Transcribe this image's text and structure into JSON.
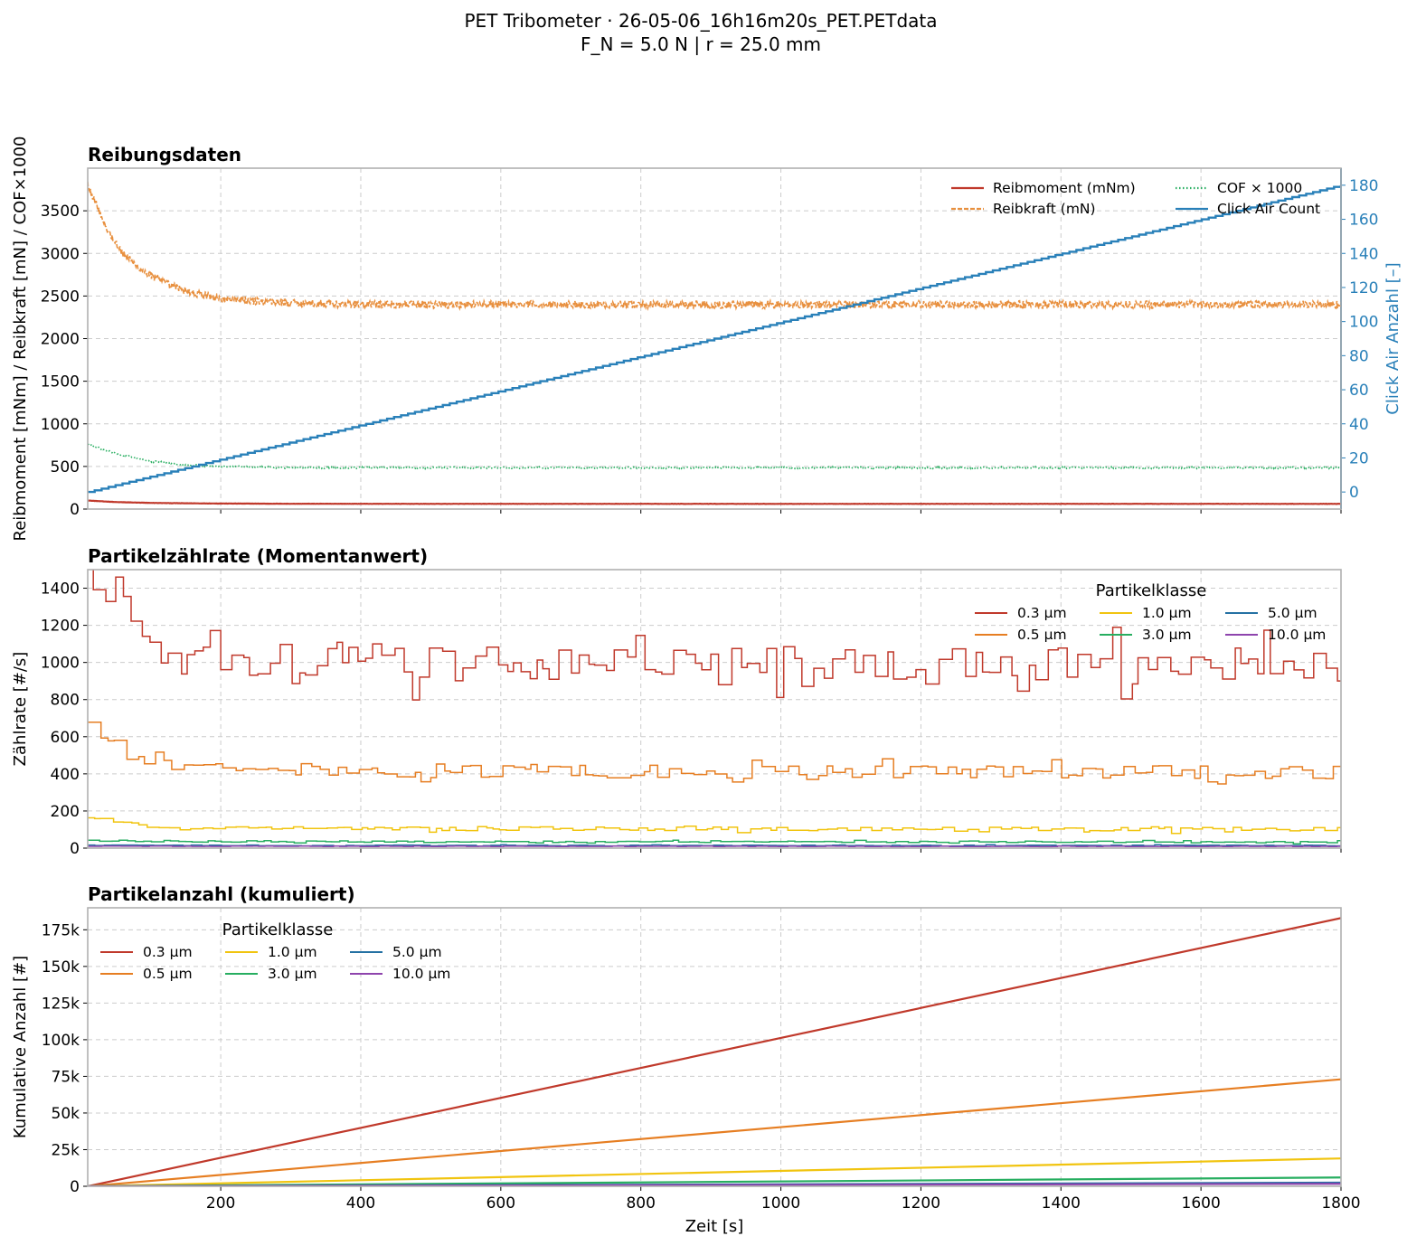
{
  "figure": {
    "suptitle_line1": "PET Tribometer  ·  26-05-06_16h16m20s_PET.PETdata",
    "suptitle_line2": "F_N = 5.0 N  |  r = 25.0 mm"
  },
  "colors": {
    "reibmoment": "#c0392b",
    "reibkraft": "#e8903f",
    "cof": "#27ae60",
    "click_air": "#2980b9",
    "p03": "#c0392b",
    "p05": "#e67e22",
    "p10": "#f1c40f",
    "p30": "#27ae60",
    "p50": "#2471a3",
    "p100": "#8e44ad"
  },
  "chart_data": [
    {
      "type": "line",
      "title": "Reibungsdaten",
      "xlabel": "",
      "ylabel": "Reibmoment [mNm]  /  Reibkraft [mN]  /  COF×1000",
      "y2label": "Click Air Anzahl [–]",
      "xlim": [
        10,
        1800
      ],
      "ylim": [
        0,
        4000
      ],
      "y2lim": [
        -10,
        190
      ],
      "yticks": [
        0,
        500,
        1000,
        1500,
        2000,
        2500,
        3000,
        3500
      ],
      "y2ticks": [
        0,
        20,
        40,
        60,
        80,
        100,
        120,
        140,
        160,
        180
      ],
      "xticks": [
        200,
        400,
        600,
        800,
        1000,
        1200,
        1400,
        1600,
        1800
      ],
      "grid": true,
      "legend_position": "top-right",
      "series": [
        {
          "name": "Reibmoment (mNm)",
          "style": "solid",
          "axis": "left",
          "x": [
            10,
            50,
            100,
            150,
            200,
            300,
            500,
            1800
          ],
          "values": [
            100,
            82,
            72,
            68,
            65,
            62,
            61,
            61
          ],
          "noise": 1.5
        },
        {
          "name": "Reibkraft (mN)",
          "style": "dashed",
          "axis": "left",
          "x": [
            10,
            20,
            40,
            60,
            80,
            100,
            120,
            150,
            180,
            200,
            250,
            300,
            400,
            1800
          ],
          "values": [
            3800,
            3620,
            3250,
            3000,
            2850,
            2740,
            2650,
            2560,
            2500,
            2470,
            2440,
            2420,
            2400,
            2400
          ],
          "noise": 45
        },
        {
          "name": "COF × 1000",
          "style": "dotted",
          "axis": "left",
          "x": [
            10,
            50,
            100,
            150,
            200,
            300,
            1800
          ],
          "values": [
            760,
            650,
            560,
            520,
            500,
            485,
            485
          ],
          "noise": 10
        },
        {
          "name": "Click Air Count",
          "style": "steps",
          "axis": "right",
          "x": [
            10,
            1800
          ],
          "values": [
            0,
            180
          ],
          "noise": 0
        }
      ]
    },
    {
      "type": "line",
      "title": "Partikelzählrate (Momentanwert)",
      "xlabel": "",
      "ylabel": "Zählrate [#/s]",
      "xlim": [
        10,
        1800
      ],
      "ylim": [
        0,
        1500
      ],
      "yticks": [
        0,
        200,
        400,
        600,
        800,
        1000,
        1200,
        1400
      ],
      "xticks": [
        200,
        400,
        600,
        800,
        1000,
        1200,
        1400,
        1600,
        1800
      ],
      "grid": true,
      "legend_title": "Partikelklasse",
      "legend_position": "top-right",
      "series": [
        {
          "name": "0.3 µm",
          "x": [
            10,
            30,
            50,
            70,
            100,
            200,
            1800
          ],
          "values": [
            1420,
            1350,
            1400,
            1150,
            1040,
            1010,
            990
          ],
          "noise": 95
        },
        {
          "name": "0.5 µm",
          "x": [
            10,
            30,
            50,
            70,
            100,
            150,
            200,
            1800
          ],
          "values": [
            680,
            620,
            550,
            500,
            470,
            440,
            420,
            405
          ],
          "noise": 38
        },
        {
          "name": "1.0 µm",
          "x": [
            10,
            40,
            80,
            150,
            1800
          ],
          "values": [
            170,
            150,
            125,
            105,
            102
          ],
          "noise": 10
        },
        {
          "name": "3.0 µm",
          "x": [
            10,
            100,
            1800
          ],
          "values": [
            42,
            36,
            32
          ],
          "noise": 4
        },
        {
          "name": "5.0 µm",
          "x": [
            10,
            1800
          ],
          "values": [
            15,
            14
          ],
          "noise": 2
        },
        {
          "name": "10.0 µm",
          "x": [
            10,
            1800
          ],
          "values": [
            10,
            9
          ],
          "noise": 1
        }
      ]
    },
    {
      "type": "line",
      "title": "Partikelanzahl (kumuliert)",
      "xlabel": "Zeit [s]",
      "ylabel": "Kumulative Anzahl [#]",
      "xlim": [
        10,
        1800
      ],
      "ylim": [
        0,
        190000
      ],
      "yticks": [
        0,
        25000,
        50000,
        75000,
        100000,
        125000,
        150000,
        175000
      ],
      "ytick_labels": [
        "0",
        "25k",
        "50k",
        "75k",
        "100k",
        "125k",
        "150k",
        "175k"
      ],
      "xticks": [
        200,
        400,
        600,
        800,
        1000,
        1200,
        1400,
        1600,
        1800
      ],
      "grid": true,
      "legend_title": "Partikelklasse",
      "legend_position": "top-left",
      "series": [
        {
          "name": "0.3 µm",
          "x": [
            10,
            1800
          ],
          "values": [
            0,
            183000
          ]
        },
        {
          "name": "0.5 µm",
          "x": [
            10,
            1800
          ],
          "values": [
            0,
            73000
          ]
        },
        {
          "name": "1.0 µm",
          "x": [
            10,
            1800
          ],
          "values": [
            0,
            19000
          ]
        },
        {
          "name": "3.0 µm",
          "x": [
            10,
            1800
          ],
          "values": [
            0,
            6000
          ]
        },
        {
          "name": "5.0 µm",
          "x": [
            10,
            1800
          ],
          "values": [
            0,
            2500
          ]
        },
        {
          "name": "10.0 µm",
          "x": [
            10,
            1800
          ],
          "values": [
            0,
            1700
          ]
        }
      ]
    }
  ]
}
